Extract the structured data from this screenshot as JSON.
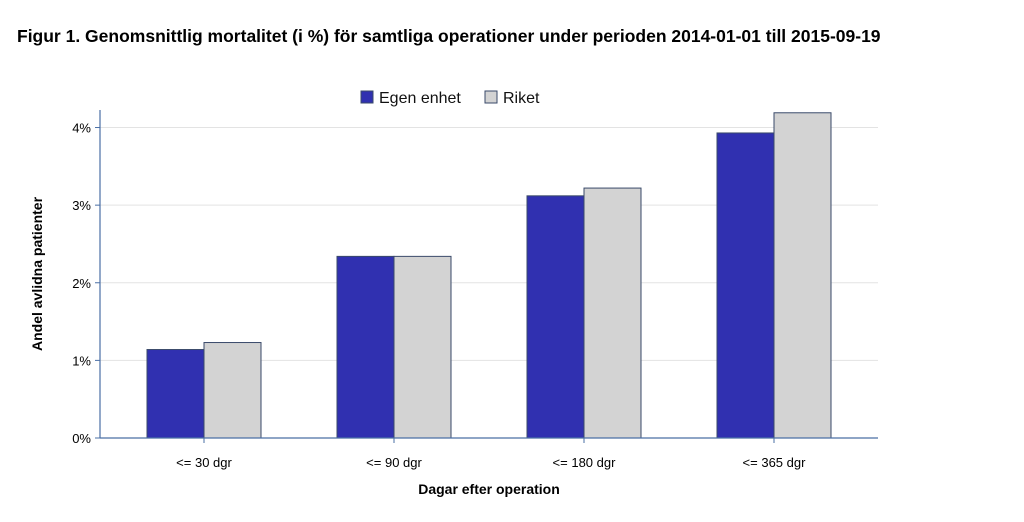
{
  "figure_title": "Figur 1. Genomsnittlig mortalitet (i %) för samtliga operationer under perioden 2014-01-01 till 2015-09-19",
  "colors": {
    "egen_enhet": "#3030b0",
    "riket": "#d3d3d3",
    "bar_stroke": "#3a4a6a",
    "axis": "#4a6fa5",
    "grid": "#e3e3e3"
  },
  "chart_data": {
    "type": "bar",
    "categories": [
      "<= 30 dgr",
      "<= 90 dgr",
      "<= 180 dgr",
      "<= 365 dgr"
    ],
    "series": [
      {
        "name": "Egen enhet",
        "values": [
          1.14,
          2.34,
          3.12,
          3.93
        ]
      },
      {
        "name": "Riket",
        "values": [
          1.23,
          2.34,
          3.22,
          4.19
        ]
      }
    ],
    "xlabel": "Dagar efter operation",
    "ylabel": "Andel avlidna patienter",
    "ylim": [
      0,
      4.2
    ],
    "yticks": [
      0,
      1,
      2,
      3,
      4
    ],
    "ytick_labels": [
      "0%",
      "1%",
      "2%",
      "3%",
      "4%"
    ],
    "grid": true,
    "legend_position": "top-center"
  }
}
